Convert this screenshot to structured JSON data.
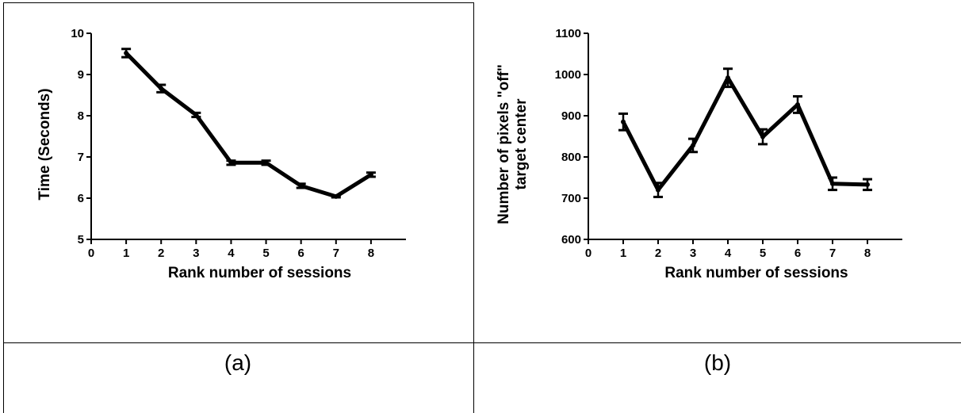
{
  "captions": {
    "left": "(a)",
    "right": "(b)"
  },
  "chart_data": [
    {
      "type": "line",
      "title": "",
      "xlabel": "Rank number of sessions",
      "ylabel": "Time (Seconds)",
      "xlim": [
        0,
        9
      ],
      "ylim": [
        5,
        10
      ],
      "xticks": [
        0,
        1,
        2,
        3,
        4,
        5,
        6,
        7,
        8
      ],
      "yticks": [
        5,
        6,
        7,
        8,
        9,
        10
      ],
      "x": [
        1,
        2,
        3,
        4,
        5,
        6,
        7,
        8
      ],
      "values": [
        9.52,
        8.66,
        8.02,
        6.86,
        6.86,
        6.3,
        6.04,
        6.57
      ],
      "errors": [
        0.1,
        0.09,
        0.05,
        0.05,
        0.05,
        0.05,
        0.02,
        0.05
      ],
      "error_bars": true,
      "grid": false,
      "legend": "none"
    },
    {
      "type": "line",
      "title": "",
      "xlabel": "Rank number of sessions",
      "ylabel": "Number of pixels \"off\" target center",
      "xlim": [
        0,
        9
      ],
      "ylim": [
        600,
        1100
      ],
      "xticks": [
        0,
        1,
        2,
        3,
        4,
        5,
        6,
        7,
        8
      ],
      "yticks": [
        600,
        700,
        800,
        900,
        1000,
        1100
      ],
      "x": [
        1,
        2,
        3,
        4,
        5,
        6,
        7,
        8
      ],
      "values": [
        885,
        720,
        828,
        992,
        849,
        927,
        735,
        733
      ],
      "errors": [
        20,
        17,
        16,
        22,
        18,
        20,
        15,
        13
      ],
      "error_bars": true,
      "grid": false,
      "legend": "none"
    }
  ]
}
